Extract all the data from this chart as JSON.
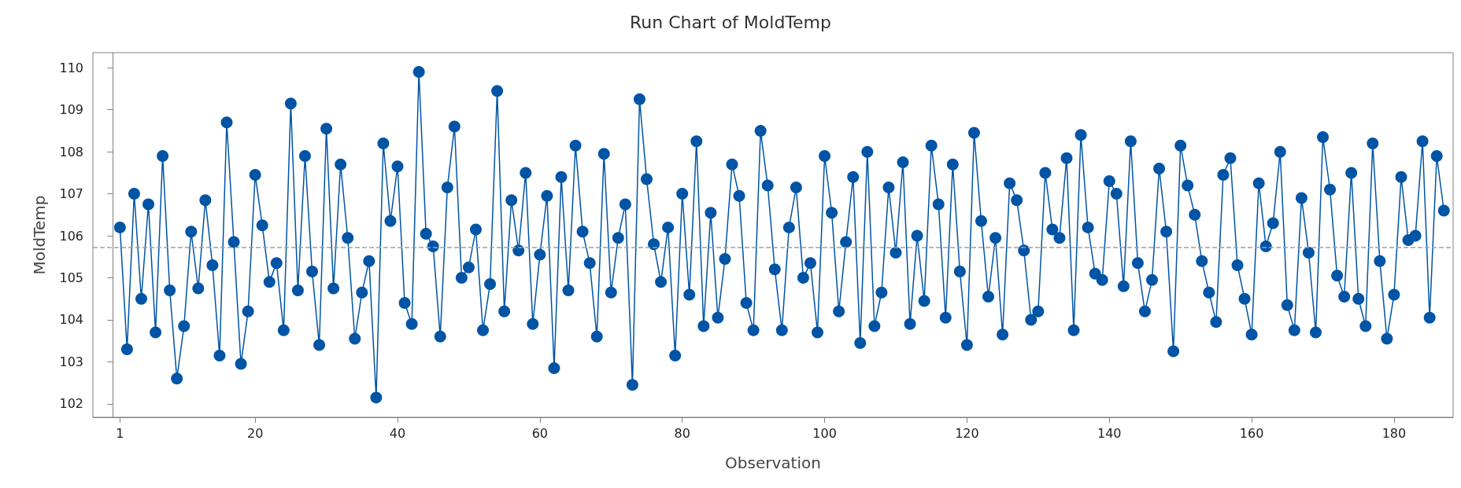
{
  "chart_data": {
    "type": "line",
    "title": "Run Chart of MoldTemp",
    "xlabel": "Observation",
    "ylabel": "MoldTemp",
    "x": [
      1,
      2,
      3,
      4,
      5,
      6,
      7,
      8,
      9,
      10,
      11,
      12,
      13,
      14,
      15,
      16,
      17,
      18,
      19,
      20,
      21,
      22,
      23,
      24,
      25,
      26,
      27,
      28,
      29,
      30,
      31,
      32,
      33,
      34,
      35,
      36,
      37,
      38,
      39,
      40,
      41,
      42,
      43,
      44,
      45,
      46,
      47,
      48,
      49,
      50,
      51,
      52,
      53,
      54,
      55,
      56,
      57,
      58,
      59,
      60,
      61,
      62,
      63,
      64,
      65,
      66,
      67,
      68,
      69,
      70,
      71,
      72,
      73,
      74,
      75,
      76,
      77,
      78,
      79,
      80,
      81,
      82,
      83,
      84,
      85,
      86,
      87,
      88,
      89,
      90,
      91,
      92,
      93,
      94,
      95,
      96,
      97,
      98,
      99,
      100,
      101,
      102,
      103,
      104,
      105,
      106,
      107,
      108,
      109,
      110,
      111,
      112,
      113,
      114,
      115,
      116,
      117,
      118,
      119,
      120,
      121,
      122,
      123,
      124,
      125,
      126,
      127,
      128,
      129,
      130,
      131,
      132,
      133,
      134,
      135,
      136,
      137,
      138,
      139,
      140,
      141,
      142,
      143,
      144,
      145,
      146,
      147,
      148,
      149,
      150,
      151,
      152,
      153,
      154,
      155,
      156,
      157,
      158,
      159,
      160,
      161,
      162,
      163,
      164,
      165,
      166,
      167,
      168,
      169,
      170,
      171,
      172,
      173,
      174,
      175,
      176,
      177,
      178,
      179,
      180,
      181,
      182,
      183,
      184,
      185,
      186,
      187
    ],
    "series": [
      {
        "color": "#0054a6",
        "values": [
          106.2,
          103.3,
          107.0,
          104.5,
          106.75,
          103.7,
          107.9,
          104.7,
          102.6,
          103.85,
          106.1,
          104.75,
          106.85,
          105.3,
          103.15,
          108.7,
          105.85,
          102.95,
          104.2,
          107.45,
          106.25,
          104.9,
          105.35,
          103.75,
          109.15,
          104.7,
          107.9,
          105.15,
          103.4,
          108.55,
          104.75,
          107.7,
          105.95,
          103.55,
          104.65,
          105.4,
          102.15,
          108.2,
          106.35,
          107.65,
          104.4,
          103.9,
          109.9,
          106.05,
          105.75,
          103.6,
          107.15,
          108.6,
          105.0,
          105.25,
          106.15,
          103.75,
          104.85,
          109.45,
          104.2,
          106.85,
          105.65,
          107.5,
          103.9,
          105.55,
          106.95,
          102.85,
          107.4,
          104.7,
          108.15,
          106.1,
          105.35,
          103.6,
          107.95,
          104.65,
          105.95,
          106.75,
          102.45,
          109.25,
          107.35,
          105.8,
          104.9,
          106.2,
          103.15,
          107.0,
          104.6,
          108.25,
          103.85,
          106.55,
          104.05,
          105.45,
          107.7,
          106.95,
          104.4,
          103.75,
          108.5,
          107.2,
          105.2,
          103.75,
          106.2,
          107.15,
          105.0,
          105.35,
          103.7,
          107.9,
          106.55,
          104.2,
          105.85,
          107.4,
          103.45,
          108.0,
          103.85,
          104.65,
          107.15,
          105.6,
          107.75,
          103.9,
          106.0,
          104.45,
          108.15,
          106.75,
          104.05,
          107.7,
          105.15,
          103.4,
          108.45,
          106.35,
          104.55,
          105.95,
          103.65,
          107.25,
          106.85,
          105.65,
          104.0,
          104.2,
          107.5,
          106.15,
          105.95,
          107.85,
          103.75,
          108.4,
          106.2,
          105.1,
          104.95,
          107.3,
          107.0,
          104.8,
          108.25,
          105.35,
          104.2,
          104.95,
          107.6,
          106.1,
          103.25,
          108.15,
          107.2,
          106.5,
          105.4,
          104.65,
          103.95,
          107.45,
          107.85,
          105.3,
          104.5,
          103.65,
          107.25,
          105.75,
          106.3,
          108.0,
          104.35,
          103.75,
          106.9,
          105.6,
          103.7,
          108.35,
          107.1,
          105.05,
          104.55,
          107.5,
          104.5,
          103.85,
          108.2,
          105.4,
          103.55,
          104.6,
          107.4,
          105.9,
          106.0,
          108.25,
          104.05,
          107.9,
          106.6
        ]
      }
    ],
    "xlim": [
      -2.8,
      188.3
    ],
    "xticks": [
      1,
      20,
      40,
      60,
      80,
      100,
      120,
      140,
      160,
      180
    ],
    "ylim": [
      101.68,
      110.36
    ],
    "yticks": [
      102,
      103,
      104,
      105,
      106,
      107,
      108,
      109,
      110
    ],
    "ref_lines": [
      {
        "axis": "y",
        "value": 105.73,
        "color": "#a0a0a0",
        "line_style": "dashed"
      }
    ],
    "marker": "circle",
    "line_style": "solid",
    "grid": false
  }
}
